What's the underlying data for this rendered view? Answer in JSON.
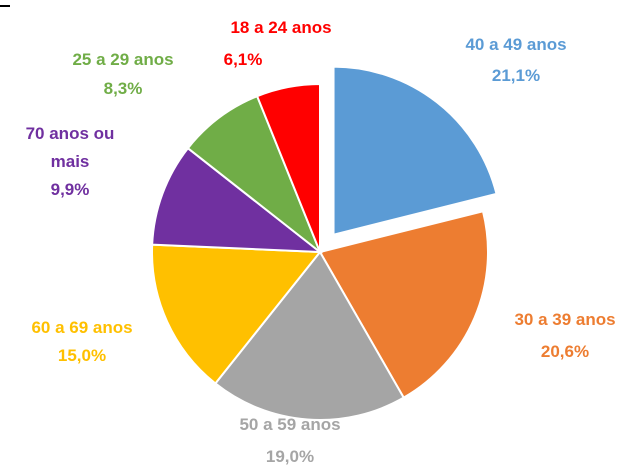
{
  "chart_data": {
    "type": "pie",
    "categories": [
      "40 a 49 anos",
      "30 a 39 anos",
      "50 a 59 anos",
      "60 a 69 anos",
      "70 anos ou mais",
      "25 a 29 anos",
      "18 a 24 anos"
    ],
    "values": [
      21.1,
      20.6,
      19.0,
      15.0,
      9.9,
      8.3,
      6.1
    ],
    "value_labels": [
      "21,1%",
      "20,6%",
      "19,0%",
      "15,0%",
      "9,9%",
      "8,3%",
      "6,1%"
    ],
    "colors": [
      "#5b9bd5",
      "#ed7d31",
      "#a5a5a5",
      "#ffc000",
      "#7030a0",
      "#70ad47",
      "#ff0000"
    ],
    "exploded": [
      0
    ]
  }
}
